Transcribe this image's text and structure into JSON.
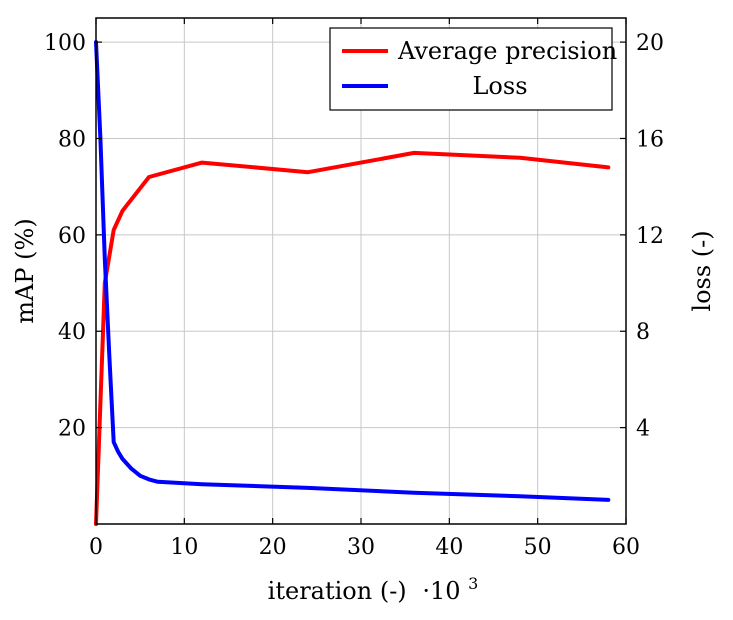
{
  "chart_data": {
    "type": "line",
    "title": "",
    "xlabel": "iteration (-)",
    "x_multiplier": "·10",
    "x_multiplier_exp": "3",
    "ylabel_left": "mAP (%)",
    "ylabel_right": "loss (-)",
    "xlim": [
      0,
      60
    ],
    "ylim_left": [
      0,
      105
    ],
    "ylim_right": [
      0,
      21
    ],
    "x_ticks": [
      0,
      10,
      20,
      30,
      40,
      50,
      60
    ],
    "y_left_ticks": [
      20,
      40,
      60,
      80,
      100
    ],
    "y_right_ticks": [
      4,
      8,
      12,
      16,
      20
    ],
    "grid": true,
    "legend_position": "top-right",
    "series": [
      {
        "name": "Average precision",
        "axis": "left",
        "color": "#ff0000",
        "points": [
          [
            0,
            0
          ],
          [
            1,
            50
          ],
          [
            2,
            61
          ],
          [
            3,
            65
          ],
          [
            6,
            72
          ],
          [
            12,
            75
          ],
          [
            24,
            73
          ],
          [
            36,
            77
          ],
          [
            48,
            76
          ],
          [
            58,
            74
          ]
        ]
      },
      {
        "name": "Loss",
        "axis": "right",
        "color": "#0000ff",
        "points": [
          [
            0,
            20
          ],
          [
            0.5,
            16
          ],
          [
            1,
            11
          ],
          [
            1.5,
            7
          ],
          [
            2,
            3.4
          ],
          [
            2.5,
            3
          ],
          [
            3,
            2.7
          ],
          [
            4,
            2.3
          ],
          [
            5,
            2.0
          ],
          [
            6,
            1.85
          ],
          [
            7,
            1.75
          ],
          [
            12,
            1.65
          ],
          [
            24,
            1.5
          ],
          [
            36,
            1.3
          ],
          [
            48,
            1.15
          ],
          [
            58,
            1.0
          ]
        ]
      }
    ]
  }
}
